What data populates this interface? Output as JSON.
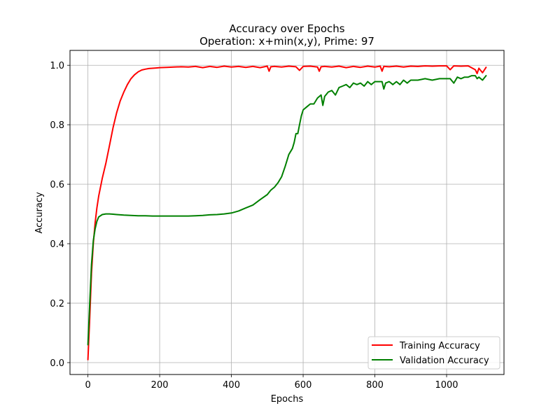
{
  "chart_data": {
    "type": "line",
    "title": "Accuracy over Epochs",
    "subtitle": "Operation: x+min(x,y), Prime: 97",
    "xlabel": "Epochs",
    "ylabel": "Accuracy",
    "xlim": [
      -50,
      1160
    ],
    "ylim": [
      -0.04,
      1.05
    ],
    "xticks": [
      0,
      200,
      400,
      600,
      800,
      1000
    ],
    "xtick_labels": [
      "0",
      "200",
      "400",
      "600",
      "800",
      "1000"
    ],
    "yticks": [
      0.0,
      0.2,
      0.4,
      0.6,
      0.8,
      1.0
    ],
    "ytick_labels": [
      "0.0",
      "0.2",
      "0.4",
      "0.6",
      "0.8",
      "1.0"
    ],
    "grid": true,
    "legend_position": "lower-right",
    "series": [
      {
        "name": "Training Accuracy",
        "color": "#ff0000",
        "x": [
          0,
          5,
          10,
          15,
          20,
          25,
          30,
          40,
          50,
          60,
          70,
          80,
          90,
          100,
          110,
          120,
          130,
          140,
          150,
          160,
          170,
          180,
          190,
          200,
          220,
          240,
          260,
          280,
          300,
          320,
          340,
          360,
          380,
          400,
          420,
          440,
          460,
          480,
          500,
          505,
          510,
          520,
          540,
          560,
          580,
          590,
          600,
          620,
          640,
          645,
          650,
          660,
          680,
          700,
          720,
          740,
          760,
          780,
          800,
          815,
          820,
          825,
          840,
          860,
          880,
          900,
          920,
          940,
          960,
          980,
          1000,
          1010,
          1020,
          1040,
          1060,
          1080,
          1085,
          1090,
          1100,
          1110
        ],
        "y": [
          0.01,
          0.15,
          0.3,
          0.4,
          0.47,
          0.52,
          0.56,
          0.62,
          0.67,
          0.73,
          0.79,
          0.84,
          0.88,
          0.91,
          0.935,
          0.955,
          0.968,
          0.978,
          0.984,
          0.987,
          0.989,
          0.99,
          0.991,
          0.992,
          0.993,
          0.994,
          0.995,
          0.994,
          0.996,
          0.992,
          0.996,
          0.993,
          0.997,
          0.994,
          0.996,
          0.993,
          0.996,
          0.992,
          0.997,
          0.98,
          0.995,
          0.996,
          0.994,
          0.997,
          0.995,
          0.983,
          0.996,
          0.997,
          0.994,
          0.98,
          0.995,
          0.996,
          0.994,
          0.997,
          0.992,
          0.996,
          0.993,
          0.997,
          0.994,
          0.997,
          0.98,
          0.996,
          0.995,
          0.997,
          0.994,
          0.997,
          0.996,
          0.998,
          0.997,
          0.998,
          0.998,
          0.985,
          0.998,
          0.997,
          0.998,
          0.985,
          0.972,
          0.99,
          0.975,
          0.993
        ]
      },
      {
        "name": "Validation Accuracy",
        "color": "#008000",
        "x": [
          0,
          5,
          10,
          15,
          20,
          25,
          30,
          40,
          50,
          60,
          70,
          80,
          100,
          120,
          140,
          160,
          180,
          200,
          220,
          240,
          260,
          280,
          300,
          320,
          340,
          360,
          380,
          400,
          420,
          440,
          460,
          480,
          500,
          510,
          520,
          530,
          540,
          550,
          560,
          570,
          575,
          580,
          585,
          590,
          595,
          600,
          610,
          620,
          630,
          640,
          650,
          655,
          660,
          670,
          680,
          690,
          700,
          710,
          720,
          730,
          740,
          750,
          760,
          770,
          780,
          790,
          800,
          810,
          820,
          825,
          830,
          840,
          850,
          860,
          870,
          880,
          890,
          900,
          920,
          940,
          960,
          980,
          1000,
          1010,
          1020,
          1030,
          1040,
          1050,
          1060,
          1070,
          1080,
          1085,
          1090,
          1100,
          1110
        ],
        "y": [
          0.06,
          0.2,
          0.33,
          0.41,
          0.45,
          0.475,
          0.49,
          0.498,
          0.5,
          0.5,
          0.499,
          0.498,
          0.496,
          0.495,
          0.494,
          0.494,
          0.493,
          0.493,
          0.493,
          0.493,
          0.493,
          0.493,
          0.494,
          0.495,
          0.497,
          0.498,
          0.5,
          0.503,
          0.51,
          0.52,
          0.53,
          0.548,
          0.565,
          0.58,
          0.59,
          0.605,
          0.625,
          0.66,
          0.7,
          0.72,
          0.74,
          0.77,
          0.77,
          0.8,
          0.83,
          0.85,
          0.86,
          0.87,
          0.87,
          0.89,
          0.9,
          0.865,
          0.895,
          0.91,
          0.915,
          0.9,
          0.925,
          0.93,
          0.935,
          0.925,
          0.94,
          0.935,
          0.94,
          0.93,
          0.945,
          0.935,
          0.945,
          0.945,
          0.945,
          0.92,
          0.94,
          0.945,
          0.935,
          0.945,
          0.935,
          0.95,
          0.94,
          0.95,
          0.95,
          0.955,
          0.95,
          0.955,
          0.955,
          0.955,
          0.94,
          0.96,
          0.955,
          0.96,
          0.96,
          0.965,
          0.965,
          0.955,
          0.96,
          0.95,
          0.965
        ]
      }
    ]
  }
}
